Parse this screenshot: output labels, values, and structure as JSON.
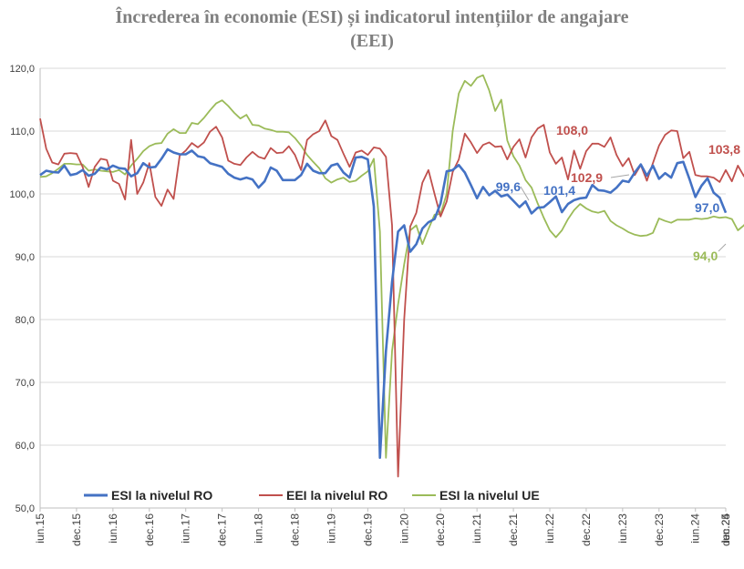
{
  "chart_data": {
    "type": "line",
    "title_line1": "Încrederea în economie (ESI) și indicatorul intențiilor de angajare",
    "title_line2": "(EEI)",
    "ylim": [
      50,
      120
    ],
    "yticks": [
      "50,0",
      "60,0",
      "70,0",
      "80,0",
      "90,0",
      "100,0",
      "110,0",
      "120,0"
    ],
    "grid": "horizontal",
    "legend_position": "bottom-left",
    "start": "2015-06",
    "xtick_labels": [
      "iun.15",
      "dec.15",
      "iun.16",
      "dec.16",
      "iun.17",
      "dec.17",
      "iun.18",
      "dec.18",
      "iun.19",
      "dec.19",
      "iun.20",
      "dec.20",
      "iun.21",
      "dec.21",
      "iun.22",
      "dec.22",
      "iun.23",
      "dec.23",
      "iun.24",
      "dec.24",
      "iun.25"
    ],
    "series": [
      {
        "name": "ESI la nivelul RO",
        "color": "#4472c4",
        "values": [
          103.0,
          103.7,
          103.5,
          103.4,
          104.5,
          103.0,
          103.2,
          103.8,
          102.9,
          103.2,
          104.2,
          103.9,
          104.5,
          104.1,
          104.0,
          102.8,
          103.3,
          104.9,
          104.2,
          104.3,
          105.6,
          107.1,
          106.6,
          106.3,
          106.3,
          106.9,
          106.0,
          105.8,
          104.9,
          104.6,
          104.3,
          103.2,
          102.6,
          102.3,
          102.6,
          102.3,
          101.0,
          102.0,
          104.2,
          103.7,
          102.2,
          102.2,
          102.2,
          103.0,
          104.8,
          103.7,
          103.3,
          103.3,
          104.5,
          104.8,
          103.4,
          102.6,
          105.8,
          105.9,
          105.5,
          98.0,
          58.0,
          75.0,
          86.0,
          94.0,
          95.0,
          90.8,
          92.0,
          94.5,
          95.5,
          96.0,
          98.5,
          103.6,
          103.8,
          104.6,
          103.4,
          101.4,
          99.3,
          101.1,
          99.8,
          100.5,
          99.6,
          99.9,
          98.9,
          97.9,
          98.8,
          96.9,
          97.8,
          97.9,
          98.7,
          99.6,
          97.1,
          98.4,
          99.0,
          99.3,
          99.4,
          101.4,
          100.6,
          100.5,
          100.2,
          101.0,
          102.1,
          101.9,
          103.4,
          104.7,
          102.9,
          104.5,
          102.4,
          103.3,
          102.6,
          104.9,
          105.1,
          102.4,
          99.5,
          101.3,
          102.5,
          100.2,
          99.4,
          97.0
        ]
      },
      {
        "name": "EEI la nivelul RO",
        "color": "#c0504d",
        "values": [
          112.0,
          107.2,
          105.0,
          104.7,
          106.4,
          106.5,
          106.4,
          104.3,
          101.1,
          104.3,
          105.6,
          105.4,
          102.1,
          101.6,
          99.1,
          108.6,
          100.0,
          101.8,
          104.9,
          99.5,
          98.1,
          100.7,
          99.2,
          106.1,
          106.9,
          108.1,
          107.4,
          108.2,
          109.9,
          110.7,
          109.0,
          105.3,
          104.8,
          104.6,
          105.8,
          106.7,
          105.9,
          105.6,
          107.3,
          106.5,
          106.6,
          107.6,
          106.2,
          103.8,
          108.6,
          109.5,
          110.0,
          111.7,
          109.2,
          108.6,
          106.4,
          104.3,
          106.6,
          106.9,
          106.2,
          107.4,
          107.2,
          105.9,
          95.0,
          55.0,
          80.0,
          94.8,
          97.0,
          101.8,
          103.8,
          100.0,
          96.4,
          98.8,
          103.5,
          105.5,
          109.6,
          108.2,
          106.5,
          107.8,
          108.2,
          107.5,
          107.6,
          105.5,
          107.5,
          108.7,
          105.8,
          109.0,
          110.4,
          111.0,
          106.6,
          104.8,
          105.8,
          102.3,
          106.9,
          104.0,
          106.8,
          108.0,
          108.0,
          107.5,
          109.0,
          106.2,
          104.4,
          105.7,
          103.0,
          104.6,
          102.1,
          104.9,
          107.7,
          109.4,
          110.1,
          110.0,
          105.7,
          106.7,
          103.0,
          102.8,
          102.8,
          102.6,
          101.9,
          103.8,
          102.0,
          104.5,
          102.8,
          106.0,
          103.8
        ]
      },
      {
        "name": "ESI la nivelul UE",
        "color": "#9bbb59",
        "values": [
          102.7,
          102.8,
          103.3,
          104.0,
          104.8,
          104.8,
          104.7,
          104.7,
          103.7,
          103.9,
          103.7,
          103.6,
          103.5,
          103.8,
          103.1,
          104.5,
          105.6,
          106.8,
          107.6,
          108.0,
          108.1,
          109.6,
          110.3,
          109.7,
          109.7,
          111.3,
          111.1,
          112.1,
          113.3,
          114.4,
          114.9,
          114.0,
          112.9,
          112.0,
          112.6,
          111.0,
          110.9,
          110.4,
          110.2,
          109.9,
          109.9,
          109.8,
          108.9,
          107.7,
          106.2,
          105.1,
          104.1,
          102.5,
          101.8,
          102.3,
          102.6,
          101.9,
          102.1,
          102.9,
          103.6,
          105.6,
          94.0,
          58.0,
          75.0,
          82.4,
          88.8,
          94.2,
          95.0,
          92.0,
          94.4,
          96.7,
          96.8,
          100.0,
          110.0,
          116.0,
          118.0,
          117.2,
          118.5,
          118.9,
          116.5,
          113.2,
          115.0,
          108.5,
          106.0,
          104.5,
          102.2,
          101.0,
          98.5,
          96.2,
          94.2,
          93.1,
          94.2,
          96.0,
          97.4,
          98.4,
          97.7,
          97.2,
          97.0,
          97.3,
          95.7,
          95.0,
          94.5,
          93.9,
          93.5,
          93.3,
          93.4,
          93.8,
          96.1,
          95.7,
          95.4,
          95.9,
          95.9,
          95.9,
          96.1,
          96.0,
          96.1,
          96.4,
          96.2,
          96.3,
          96.0,
          94.2,
          95.0,
          96.6,
          95.2,
          94.5,
          94.8,
          94.0
        ]
      }
    ],
    "annotations": [
      {
        "text": "108,0",
        "series": 1,
        "color": "#c0504d"
      },
      {
        "text": "102,9",
        "series": 1,
        "color": "#c0504d"
      },
      {
        "text": "103,8",
        "series": 1,
        "color": "#c0504d"
      },
      {
        "text": "99,6",
        "series": 0,
        "color": "#4472c4"
      },
      {
        "text": "101,4",
        "series": 0,
        "color": "#4472c4"
      },
      {
        "text": "97,0",
        "series": 0,
        "color": "#4472c4"
      },
      {
        "text": "94,0",
        "series": 2,
        "color": "#9bbb59"
      }
    ]
  }
}
